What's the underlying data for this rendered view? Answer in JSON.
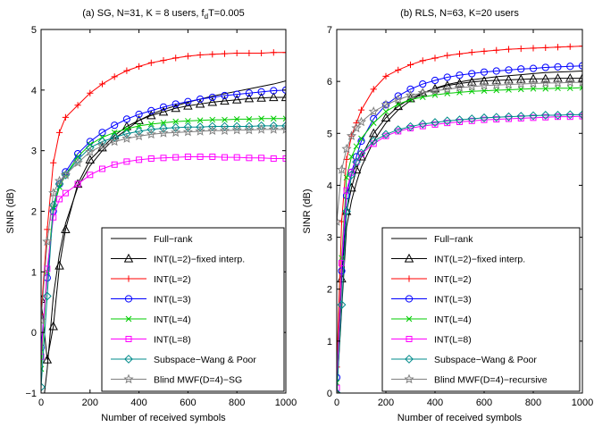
{
  "chart_data": [
    {
      "type": "line",
      "title": "(a) SG, N=31, K = 8 users, f",
      "title_sub": "d",
      "title_tail": "T=0.005",
      "xlabel": "Number of received symbols",
      "ylabel": "SINR (dB)",
      "xlim": [
        0,
        1000
      ],
      "ylim": [
        -1,
        5
      ],
      "xticks": [
        0,
        200,
        400,
        600,
        800,
        1000
      ],
      "yticks": [
        -1,
        0,
        1,
        2,
        3,
        4,
        5
      ],
      "grid": false,
      "legend_position": "bottom-right",
      "series": [
        {
          "name": "Full−rank",
          "color": "#000000",
          "marker": "none",
          "x": [
            0,
            25,
            50,
            75,
            100,
            150,
            200,
            250,
            300,
            350,
            400,
            450,
            500,
            550,
            600,
            650,
            700,
            750,
            800,
            850,
            900,
            950,
            1000
          ],
          "y": [
            -1.5,
            -0.6,
            0.6,
            1.3,
            1.8,
            2.4,
            2.75,
            3.0,
            3.2,
            3.35,
            3.5,
            3.6,
            3.68,
            3.74,
            3.8,
            3.85,
            3.9,
            3.94,
            3.98,
            4.02,
            4.06,
            4.1,
            4.15
          ]
        },
        {
          "name": "INT(L=2)−fixed interp.",
          "color": "#000000",
          "marker": "triangle",
          "x": [
            0,
            25,
            50,
            75,
            100,
            150,
            200,
            250,
            300,
            350,
            400,
            450,
            500,
            550,
            600,
            650,
            700,
            750,
            800,
            850,
            900,
            950,
            1000
          ],
          "y": [
            0.55,
            -0.45,
            0.1,
            1.1,
            1.7,
            2.45,
            2.85,
            3.05,
            3.25,
            3.4,
            3.5,
            3.58,
            3.64,
            3.7,
            3.74,
            3.77,
            3.8,
            3.82,
            3.84,
            3.86,
            3.87,
            3.88,
            3.88
          ]
        },
        {
          "name": "INT(L=2)",
          "color": "#ff0000",
          "marker": "plus",
          "x": [
            0,
            25,
            50,
            75,
            100,
            150,
            200,
            250,
            300,
            350,
            400,
            450,
            500,
            550,
            600,
            650,
            700,
            750,
            800,
            850,
            900,
            950,
            1000
          ],
          "y": [
            0.3,
            1.7,
            2.8,
            3.3,
            3.55,
            3.75,
            3.95,
            4.1,
            4.22,
            4.32,
            4.39,
            4.45,
            4.49,
            4.53,
            4.56,
            4.58,
            4.59,
            4.6,
            4.61,
            4.61,
            4.61,
            4.62,
            4.62
          ]
        },
        {
          "name": "INT(L=3)",
          "color": "#0000ff",
          "marker": "circle",
          "x": [
            0,
            25,
            50,
            75,
            100,
            150,
            200,
            250,
            300,
            350,
            400,
            450,
            500,
            550,
            600,
            650,
            700,
            750,
            800,
            850,
            900,
            950,
            1000
          ],
          "y": [
            -0.25,
            0.9,
            2.0,
            2.45,
            2.65,
            2.95,
            3.15,
            3.3,
            3.42,
            3.52,
            3.6,
            3.66,
            3.72,
            3.77,
            3.81,
            3.85,
            3.88,
            3.91,
            3.93,
            3.95,
            3.97,
            3.99,
            4.0
          ]
        },
        {
          "name": "INT(L=4)",
          "color": "#00cc00",
          "marker": "x",
          "x": [
            0,
            25,
            50,
            75,
            100,
            150,
            200,
            250,
            300,
            350,
            400,
            450,
            500,
            550,
            600,
            650,
            700,
            750,
            800,
            850,
            900,
            950,
            1000
          ],
          "y": [
            -0.6,
            1.0,
            2.05,
            2.4,
            2.6,
            2.9,
            3.1,
            3.22,
            3.3,
            3.36,
            3.41,
            3.44,
            3.46,
            3.48,
            3.49,
            3.5,
            3.51,
            3.51,
            3.52,
            3.52,
            3.53,
            3.53,
            3.53
          ]
        },
        {
          "name": "INT(L=8)",
          "color": "#ff00ff",
          "marker": "square",
          "x": [
            0,
            25,
            50,
            75,
            100,
            150,
            200,
            250,
            300,
            350,
            400,
            450,
            500,
            550,
            600,
            650,
            700,
            750,
            800,
            850,
            900,
            950,
            1000
          ],
          "y": [
            -0.4,
            1.05,
            1.9,
            2.2,
            2.3,
            2.45,
            2.6,
            2.7,
            2.77,
            2.82,
            2.85,
            2.87,
            2.88,
            2.89,
            2.9,
            2.9,
            2.9,
            2.89,
            2.89,
            2.88,
            2.88,
            2.87,
            2.87
          ]
        },
        {
          "name": "Subspace−Wang & Poor",
          "color": "#008b8b",
          "marker": "diamond",
          "x": [
            0,
            25,
            50,
            75,
            100,
            150,
            200,
            250,
            300,
            350,
            400,
            450,
            500,
            550,
            600,
            650,
            700,
            750,
            800,
            850,
            900,
            950,
            1000
          ],
          "y": [
            -0.9,
            0.6,
            2.1,
            2.45,
            2.6,
            2.85,
            3.05,
            3.15,
            3.22,
            3.28,
            3.32,
            3.35,
            3.37,
            3.38,
            3.39,
            3.39,
            3.4,
            3.4,
            3.4,
            3.4,
            3.41,
            3.41,
            3.41
          ]
        },
        {
          "name": "Blind MWF(D=4)−SG",
          "color": "#808080",
          "marker": "star",
          "x": [
            0,
            25,
            50,
            75,
            100,
            150,
            200,
            250,
            300,
            350,
            400,
            450,
            500,
            550,
            600,
            650,
            700,
            750,
            800,
            850,
            900,
            950,
            1000
          ],
          "y": [
            0.2,
            1.5,
            2.3,
            2.5,
            2.6,
            2.8,
            2.98,
            3.08,
            3.15,
            3.2,
            3.24,
            3.27,
            3.29,
            3.3,
            3.31,
            3.32,
            3.33,
            3.33,
            3.34,
            3.34,
            3.35,
            3.35,
            3.35
          ]
        }
      ]
    },
    {
      "type": "line",
      "title": "(b) RLS, N=63, K=20 users",
      "xlabel": "Number of received symbols",
      "ylabel": "SINR (dB)",
      "xlim": [
        0,
        1000
      ],
      "ylim": [
        0,
        7
      ],
      "xticks": [
        0,
        200,
        400,
        600,
        800,
        1000
      ],
      "yticks": [
        0,
        1,
        2,
        3,
        4,
        5,
        6,
        7
      ],
      "grid": false,
      "legend_position": "bottom-right",
      "series": [
        {
          "name": "Full−rank",
          "color": "#000000",
          "marker": "none",
          "x": [
            0,
            20,
            40,
            60,
            80,
            100,
            150,
            200,
            250,
            300,
            350,
            400,
            450,
            500,
            550,
            600,
            650,
            700,
            750,
            800,
            850,
            900,
            950,
            1000
          ],
          "y": [
            0.0,
            1.6,
            3.2,
            3.7,
            4.05,
            4.35,
            4.85,
            5.2,
            5.45,
            5.63,
            5.77,
            5.87,
            5.94,
            5.99,
            6.03,
            6.06,
            6.09,
            6.11,
            6.13,
            6.15,
            6.17,
            6.18,
            6.19,
            6.2
          ]
        },
        {
          "name": "INT(L=2)−fixed interp.",
          "color": "#000000",
          "marker": "triangle",
          "x": [
            0,
            20,
            40,
            60,
            80,
            100,
            150,
            200,
            250,
            300,
            350,
            400,
            450,
            500,
            550,
            600,
            650,
            700,
            750,
            800,
            850,
            900,
            950,
            1000
          ],
          "y": [
            0.0,
            2.2,
            3.5,
            3.95,
            4.3,
            4.55,
            5.0,
            5.3,
            5.52,
            5.67,
            5.78,
            5.86,
            5.92,
            5.96,
            5.99,
            6.01,
            6.02,
            6.03,
            6.04,
            6.05,
            6.05,
            6.06,
            6.06,
            6.06
          ]
        },
        {
          "name": "INT(L=2)",
          "color": "#ff0000",
          "marker": "plus",
          "x": [
            0,
            20,
            40,
            60,
            80,
            100,
            150,
            200,
            250,
            300,
            350,
            400,
            450,
            500,
            550,
            600,
            650,
            700,
            750,
            800,
            850,
            900,
            950,
            1000
          ],
          "y": [
            0.5,
            3.3,
            4.5,
            4.95,
            5.2,
            5.45,
            5.85,
            6.1,
            6.22,
            6.32,
            6.4,
            6.45,
            6.5,
            6.53,
            6.56,
            6.58,
            6.6,
            6.62,
            6.63,
            6.64,
            6.65,
            6.66,
            6.67,
            6.68
          ]
        },
        {
          "name": "INT(L=3)",
          "color": "#0000ff",
          "marker": "circle",
          "x": [
            0,
            20,
            40,
            60,
            80,
            100,
            150,
            200,
            250,
            300,
            350,
            400,
            450,
            500,
            550,
            600,
            650,
            700,
            750,
            800,
            850,
            900,
            950,
            1000
          ],
          "y": [
            0.3,
            2.35,
            3.8,
            4.25,
            4.55,
            4.85,
            5.28,
            5.55,
            5.72,
            5.85,
            5.95,
            6.02,
            6.08,
            6.12,
            6.15,
            6.18,
            6.2,
            6.22,
            6.24,
            6.25,
            6.27,
            6.28,
            6.29,
            6.3
          ]
        },
        {
          "name": "INT(L=4)",
          "color": "#00cc00",
          "marker": "x",
          "x": [
            0,
            20,
            40,
            60,
            80,
            100,
            150,
            200,
            250,
            300,
            350,
            400,
            450,
            500,
            550,
            600,
            650,
            700,
            750,
            800,
            850,
            900,
            950,
            1000
          ],
          "y": [
            0.2,
            2.6,
            4.15,
            4.55,
            4.75,
            4.9,
            5.2,
            5.42,
            5.56,
            5.65,
            5.7,
            5.74,
            5.77,
            5.79,
            5.81,
            5.82,
            5.83,
            5.84,
            5.85,
            5.86,
            5.86,
            5.87,
            5.87,
            5.88
          ]
        },
        {
          "name": "INT(L=8)",
          "color": "#ff00ff",
          "marker": "square",
          "x": [
            0,
            20,
            40,
            60,
            80,
            100,
            150,
            200,
            250,
            300,
            350,
            400,
            450,
            500,
            550,
            600,
            650,
            700,
            750,
            800,
            850,
            900,
            950,
            1000
          ],
          "y": [
            0.1,
            2.5,
            3.9,
            4.25,
            4.45,
            4.6,
            4.8,
            4.95,
            5.04,
            5.1,
            5.14,
            5.17,
            5.2,
            5.22,
            5.24,
            5.26,
            5.27,
            5.28,
            5.29,
            5.3,
            5.31,
            5.32,
            5.32,
            5.33
          ]
        },
        {
          "name": "Subspace−Wang & Poor",
          "color": "#008b8b",
          "marker": "diamond",
          "x": [
            0,
            20,
            40,
            60,
            80,
            100,
            150,
            200,
            250,
            300,
            350,
            400,
            450,
            500,
            550,
            600,
            650,
            700,
            750,
            800,
            850,
            900,
            950,
            1000
          ],
          "y": [
            0.0,
            1.7,
            3.5,
            4.2,
            4.45,
            4.62,
            4.85,
            4.98,
            5.07,
            5.13,
            5.18,
            5.21,
            5.24,
            5.26,
            5.28,
            5.3,
            5.31,
            5.32,
            5.33,
            5.34,
            5.35,
            5.35,
            5.36,
            5.36
          ]
        },
        {
          "name": "Blind MWF(D=4)−recursive",
          "color": "#808080",
          "marker": "star",
          "x": [
            0,
            20,
            40,
            60,
            80,
            100,
            150,
            200,
            250,
            300,
            350,
            400,
            450,
            500,
            550,
            600,
            650,
            700,
            750,
            800,
            850,
            900,
            950,
            1000
          ],
          "y": [
            3.3,
            4.3,
            4.7,
            4.95,
            5.1,
            5.22,
            5.42,
            5.55,
            5.65,
            5.73,
            5.78,
            5.82,
            5.85,
            5.88,
            5.9,
            5.92,
            5.93,
            5.94,
            5.95,
            5.96,
            5.97,
            5.97,
            5.98,
            5.98
          ]
        }
      ]
    }
  ]
}
